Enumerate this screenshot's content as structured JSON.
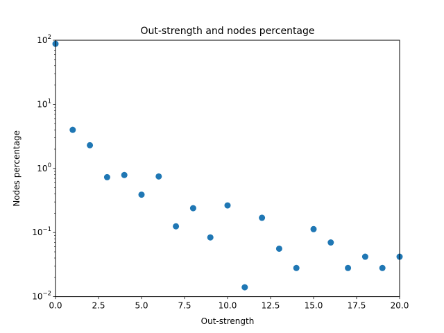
{
  "chart_data": {
    "type": "scatter",
    "title": "Out-strength and nodes percentage",
    "xlabel": "Out-strength",
    "ylabel": "Nodes percentage",
    "xlim": [
      0,
      20
    ],
    "ylim": [
      0.01,
      100
    ],
    "yscale": "log",
    "grid": false,
    "legend": "none",
    "marker_color": "#1f77b4",
    "x_ticks": [
      {
        "value": 0,
        "label": "0.0"
      },
      {
        "value": 2.5,
        "label": "2.5"
      },
      {
        "value": 5,
        "label": "5.0"
      },
      {
        "value": 7.5,
        "label": "7.5"
      },
      {
        "value": 10,
        "label": "10.0"
      },
      {
        "value": 12.5,
        "label": "12.5"
      },
      {
        "value": 15,
        "label": "15.0"
      },
      {
        "value": 17.5,
        "label": "17.5"
      },
      {
        "value": 20,
        "label": "20.0"
      }
    ],
    "y_ticks": [
      {
        "value": 0.01,
        "base": "10",
        "exp": "−2"
      },
      {
        "value": 0.1,
        "base": "10",
        "exp": "−1"
      },
      {
        "value": 1,
        "base": "10",
        "exp": "0"
      },
      {
        "value": 10,
        "base": "10",
        "exp": "1"
      },
      {
        "value": 100,
        "base": "10",
        "exp": "2"
      }
    ],
    "points": [
      {
        "x": 0,
        "y": 88
      },
      {
        "x": 1,
        "y": 4.0
      },
      {
        "x": 2,
        "y": 2.3
      },
      {
        "x": 3,
        "y": 0.73
      },
      {
        "x": 4,
        "y": 0.79
      },
      {
        "x": 5,
        "y": 0.39
      },
      {
        "x": 6,
        "y": 0.75
      },
      {
        "x": 7,
        "y": 0.125
      },
      {
        "x": 8,
        "y": 0.24
      },
      {
        "x": 9,
        "y": 0.084
      },
      {
        "x": 10,
        "y": 0.265
      },
      {
        "x": 11,
        "y": 0.014
      },
      {
        "x": 12,
        "y": 0.17
      },
      {
        "x": 13,
        "y": 0.056
      },
      {
        "x": 14,
        "y": 0.028
      },
      {
        "x": 15,
        "y": 0.113
      },
      {
        "x": 16,
        "y": 0.07
      },
      {
        "x": 17,
        "y": 0.028
      },
      {
        "x": 18,
        "y": 0.042
      },
      {
        "x": 19,
        "y": 0.028
      },
      {
        "x": 20,
        "y": 0.042
      }
    ]
  }
}
